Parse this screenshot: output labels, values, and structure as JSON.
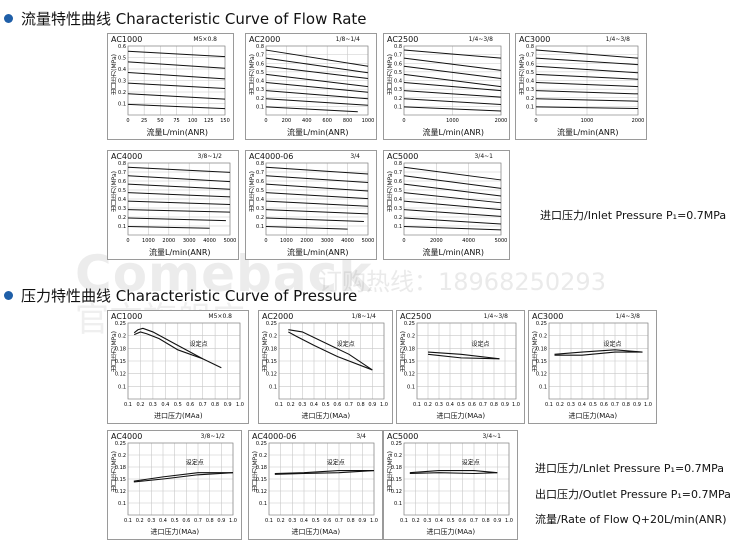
{
  "section1": {
    "title": "流量特性曲线 Characteristic Curve of Flow Rate"
  },
  "section2": {
    "title": "压力特性曲线 Characteristic Curve of Pressure"
  },
  "watermark": {
    "brand": "Comeback",
    "hotline": "订购热线：18968250293",
    "store": "官方旗舰店"
  },
  "flow_notes": {
    "inlet": "进口压力/Inlet Pressure P₁=0.7MPa"
  },
  "pressure_notes": {
    "inlet": "进口压力/Lnlet Pressure P₁=0.7MPa",
    "outlet": "出口压力/Outlet Pressure P₁=0.7MPa",
    "flow": "流量/Rate of Flow Q+20L/min(ANR)"
  },
  "labels": {
    "flow_x": "流量L/min(ANR)",
    "flow_y": "出口压力(MPa)",
    "press_x": "进口压力(MAa)",
    "press_y": "出口压力(MPa)",
    "set_point": "设定点"
  },
  "chart_data": [
    {
      "type": "line",
      "id": "f1",
      "model": "AC1000",
      "port": "M5×0.8",
      "xticks": [
        "0",
        "25",
        "50",
        "75",
        "100",
        "125",
        "150"
      ],
      "yticks": [
        "0.6",
        "0.5",
        "0.4",
        "0.3",
        "0.2",
        "0.1"
      ],
      "ylim": [
        0,
        0.65
      ],
      "xlim": [
        0,
        150
      ],
      "series": [
        {
          "x": [
            0,
            150
          ],
          "y": [
            0.6,
            0.55
          ]
        },
        {
          "x": [
            0,
            150
          ],
          "y": [
            0.5,
            0.44
          ]
        },
        {
          "x": [
            0,
            150
          ],
          "y": [
            0.4,
            0.34
          ]
        },
        {
          "x": [
            0,
            150
          ],
          "y": [
            0.3,
            0.25
          ]
        },
        {
          "x": [
            0,
            150
          ],
          "y": [
            0.2,
            0.15
          ]
        },
        {
          "x": [
            0,
            150
          ],
          "y": [
            0.1,
            0.06
          ]
        }
      ]
    },
    {
      "type": "line",
      "id": "f2",
      "model": "AC2000",
      "port": "1/8~1/4",
      "xticks": [
        "0",
        "200",
        "400",
        "600",
        "800",
        "1000"
      ],
      "yticks": [
        "0.8",
        "0.7",
        "0.6",
        "0.5",
        "0.4",
        "0.3",
        "0.2",
        "0.1"
      ],
      "ylim": [
        0,
        0.85
      ],
      "xlim": [
        0,
        1000
      ],
      "series": [
        {
          "x": [
            0,
            1000
          ],
          "y": [
            0.8,
            0.6
          ]
        },
        {
          "x": [
            0,
            1000
          ],
          "y": [
            0.7,
            0.52
          ]
        },
        {
          "x": [
            0,
            1000
          ],
          "y": [
            0.6,
            0.45
          ]
        },
        {
          "x": [
            0,
            1000
          ],
          "y": [
            0.5,
            0.35
          ]
        },
        {
          "x": [
            0,
            1000
          ],
          "y": [
            0.4,
            0.28
          ]
        },
        {
          "x": [
            0,
            1000
          ],
          "y": [
            0.3,
            0.2
          ]
        },
        {
          "x": [
            0,
            1000
          ],
          "y": [
            0.2,
            0.12
          ]
        },
        {
          "x": [
            0,
            900
          ],
          "y": [
            0.1,
            0.04
          ]
        }
      ]
    },
    {
      "type": "line",
      "id": "f3",
      "model": "AC2500",
      "port": "1/4~3/8",
      "xticks": [
        "0",
        "1000",
        "2000"
      ],
      "yticks": [
        "0.8",
        "0.7",
        "0.6",
        "0.5",
        "0.4",
        "0.3",
        "0.2",
        "0.1"
      ],
      "ylim": [
        0,
        0.85
      ],
      "xlim": [
        0,
        2000
      ],
      "series": [
        {
          "x": [
            0,
            2000
          ],
          "y": [
            0.8,
            0.7
          ]
        },
        {
          "x": [
            0,
            2000
          ],
          "y": [
            0.7,
            0.55
          ]
        },
        {
          "x": [
            0,
            2000
          ],
          "y": [
            0.6,
            0.45
          ]
        },
        {
          "x": [
            0,
            2000
          ],
          "y": [
            0.5,
            0.35
          ]
        },
        {
          "x": [
            0,
            2000
          ],
          "y": [
            0.4,
            0.3
          ]
        },
        {
          "x": [
            0,
            2000
          ],
          "y": [
            0.3,
            0.22
          ]
        },
        {
          "x": [
            0,
            2000
          ],
          "y": [
            0.2,
            0.13
          ]
        },
        {
          "x": [
            0,
            2000
          ],
          "y": [
            0.1,
            0.05
          ]
        }
      ]
    },
    {
      "type": "line",
      "id": "f4",
      "model": "AC3000",
      "port": "1/4~3/8",
      "xticks": [
        "0",
        "1000",
        "2000"
      ],
      "yticks": [
        "0.8",
        "0.7",
        "0.6",
        "0.5",
        "0.4",
        "0.3",
        "0.2",
        "0.1"
      ],
      "ylim": [
        0,
        0.85
      ],
      "xlim": [
        0,
        2000
      ],
      "series": [
        {
          "x": [
            0,
            2000
          ],
          "y": [
            0.8,
            0.7
          ]
        },
        {
          "x": [
            0,
            2000
          ],
          "y": [
            0.7,
            0.62
          ]
        },
        {
          "x": [
            0,
            2000
          ],
          "y": [
            0.6,
            0.52
          ]
        },
        {
          "x": [
            0,
            2000
          ],
          "y": [
            0.5,
            0.44
          ]
        },
        {
          "x": [
            0,
            2000
          ],
          "y": [
            0.4,
            0.35
          ]
        },
        {
          "x": [
            0,
            2000
          ],
          "y": [
            0.3,
            0.26
          ]
        },
        {
          "x": [
            0,
            2000
          ],
          "y": [
            0.2,
            0.17
          ]
        },
        {
          "x": [
            0,
            2000
          ],
          "y": [
            0.1,
            0.08
          ]
        }
      ]
    },
    {
      "type": "line",
      "id": "f5",
      "model": "AC4000",
      "port": "3/8~1/2",
      "xticks": [
        "0",
        "1000",
        "2000",
        "3000",
        "4000",
        "5000"
      ],
      "yticks": [
        "0.8",
        "0.7",
        "0.6",
        "0.5",
        "0.4",
        "0.3",
        "0.2",
        "0.1"
      ],
      "ylim": [
        0,
        0.85
      ],
      "xlim": [
        0,
        5000
      ],
      "series": [
        {
          "x": [
            0,
            5000
          ],
          "y": [
            0.8,
            0.74
          ]
        },
        {
          "x": [
            0,
            5000
          ],
          "y": [
            0.7,
            0.63
          ]
        },
        {
          "x": [
            0,
            5000
          ],
          "y": [
            0.6,
            0.54
          ]
        },
        {
          "x": [
            0,
            5000
          ],
          "y": [
            0.5,
            0.45
          ]
        },
        {
          "x": [
            0,
            5000
          ],
          "y": [
            0.4,
            0.36
          ]
        },
        {
          "x": [
            0,
            5000
          ],
          "y": [
            0.3,
            0.27
          ]
        },
        {
          "x": [
            0,
            4800
          ],
          "y": [
            0.2,
            0.17
          ]
        },
        {
          "x": [
            0,
            4000
          ],
          "y": [
            0.1,
            0.08
          ]
        }
      ]
    },
    {
      "type": "line",
      "id": "f6",
      "model": "AC4000-06",
      "port": "3/4",
      "xticks": [
        "0",
        "1000",
        "2000",
        "3000",
        "4000",
        "5000"
      ],
      "yticks": [
        "0.8",
        "0.7",
        "0.6",
        "0.5",
        "0.4",
        "0.3",
        "0.2",
        "0.1"
      ],
      "ylim": [
        0,
        0.85
      ],
      "xlim": [
        0,
        5000
      ],
      "series": [
        {
          "x": [
            0,
            5000
          ],
          "y": [
            0.8,
            0.72
          ]
        },
        {
          "x": [
            0,
            5000
          ],
          "y": [
            0.7,
            0.62
          ]
        },
        {
          "x": [
            0,
            5000
          ],
          "y": [
            0.6,
            0.52
          ]
        },
        {
          "x": [
            0,
            5000
          ],
          "y": [
            0.5,
            0.43
          ]
        },
        {
          "x": [
            0,
            5000
          ],
          "y": [
            0.4,
            0.34
          ]
        },
        {
          "x": [
            0,
            5000
          ],
          "y": [
            0.3,
            0.25
          ]
        },
        {
          "x": [
            0,
            4800
          ],
          "y": [
            0.2,
            0.16
          ]
        },
        {
          "x": [
            0,
            4000
          ],
          "y": [
            0.1,
            0.07
          ]
        }
      ]
    },
    {
      "type": "line",
      "id": "f7",
      "model": "AC5000",
      "port": "3/4~1",
      "xticks": [
        "0",
        "2000",
        "4000",
        "5000"
      ],
      "yticks": [
        "0.8",
        "0.7",
        "0.6",
        "0.5",
        "0.4",
        "0.3",
        "0.2",
        "0.1"
      ],
      "ylim": [
        0,
        0.85
      ],
      "xlim": [
        0,
        5000
      ],
      "series": [
        {
          "x": [
            0,
            5000
          ],
          "y": [
            0.8,
            0.65
          ]
        },
        {
          "x": [
            0,
            5000
          ],
          "y": [
            0.7,
            0.55
          ]
        },
        {
          "x": [
            0,
            5000
          ],
          "y": [
            0.6,
            0.46
          ]
        },
        {
          "x": [
            0,
            5000
          ],
          "y": [
            0.5,
            0.38
          ]
        },
        {
          "x": [
            0,
            5000
          ],
          "y": [
            0.4,
            0.3
          ]
        },
        {
          "x": [
            0,
            5000
          ],
          "y": [
            0.3,
            0.22
          ]
        },
        {
          "x": [
            0,
            5000
          ],
          "y": [
            0.2,
            0.13
          ]
        },
        {
          "x": [
            0,
            5000
          ],
          "y": [
            0.1,
            0.06
          ]
        }
      ]
    },
    {
      "type": "line",
      "id": "p1",
      "model": "AC1000",
      "port": "M5×0.8",
      "xticks": [
        "0.1",
        "0.2",
        "0.3",
        "0.4",
        "0.5",
        "0.6",
        "0.7",
        "0.8",
        "0.9",
        "1.0"
      ],
      "yticks": [
        "0.25",
        "0.2",
        "0.18",
        "0.15",
        "0.12",
        "0.1"
      ],
      "ylim": [
        0.1,
        0.27
      ],
      "xlim": [
        0.1,
        1.0
      ],
      "series": [
        {
          "x": [
            0.15,
            0.18,
            0.22,
            0.3,
            0.5,
            0.7,
            0.85
          ],
          "y": [
            0.248,
            0.255,
            0.258,
            0.25,
            0.22,
            0.19,
            0.17
          ]
        },
        {
          "x": [
            0.15,
            0.2,
            0.25,
            0.35,
            0.5,
            0.7
          ],
          "y": [
            0.244,
            0.25,
            0.246,
            0.235,
            0.21,
            0.19
          ]
        }
      ]
    },
    {
      "type": "line",
      "id": "p2",
      "model": "AC2000",
      "port": "1/8~1/4",
      "xticks": [
        "0.1",
        "0.2",
        "0.3",
        "0.4",
        "0.5",
        "0.6",
        "0.7",
        "0.8",
        "0.9",
        "1.0"
      ],
      "yticks": [
        "0.25",
        "0.2",
        "0.18",
        "0.15",
        "0.12",
        "0.1"
      ],
      "ylim": [
        0.1,
        0.27
      ],
      "xlim": [
        0.1,
        1.0
      ],
      "series": [
        {
          "x": [
            0.18,
            0.3,
            0.5,
            0.7,
            0.9
          ],
          "y": [
            0.255,
            0.25,
            0.225,
            0.2,
            0.165
          ]
        },
        {
          "x": [
            0.18,
            0.25,
            0.4,
            0.6,
            0.9
          ],
          "y": [
            0.25,
            0.24,
            0.22,
            0.195,
            0.165
          ]
        }
      ]
    },
    {
      "type": "line",
      "id": "p3",
      "model": "AC2500",
      "port": "1/4~3/8",
      "xticks": [
        "0.1",
        "0.2",
        "0.3",
        "0.4",
        "0.5",
        "0.6",
        "0.7",
        "0.8",
        "0.9",
        "1.0"
      ],
      "yticks": [
        "0.25",
        "0.2",
        "0.18",
        "0.15",
        "0.12",
        "0.1"
      ],
      "ylim": [
        0.1,
        0.27
      ],
      "xlim": [
        0.1,
        1.0
      ],
      "series": [
        {
          "x": [
            0.2,
            0.5,
            0.85
          ],
          "y": [
            0.205,
            0.2,
            0.19
          ]
        },
        {
          "x": [
            0.2,
            0.5,
            0.85
          ],
          "y": [
            0.2,
            0.192,
            0.19
          ]
        }
      ]
    },
    {
      "type": "line",
      "id": "p4",
      "model": "AC3000",
      "port": "1/4~3/8",
      "xticks": [
        "0.1",
        "0.2",
        "0.3",
        "0.4",
        "0.5",
        "0.6",
        "0.7",
        "0.8",
        "0.9",
        "1.0"
      ],
      "yticks": [
        "0.25",
        "0.2",
        "0.18",
        "0.15",
        "0.12",
        "0.1"
      ],
      "ylim": [
        0.1,
        0.27
      ],
      "xlim": [
        0.1,
        1.0
      ],
      "series": [
        {
          "x": [
            0.15,
            0.4,
            0.7,
            0.95
          ],
          "y": [
            0.2,
            0.205,
            0.21,
            0.205
          ]
        },
        {
          "x": [
            0.15,
            0.4,
            0.7,
            0.95
          ],
          "y": [
            0.198,
            0.198,
            0.205,
            0.205
          ]
        }
      ]
    },
    {
      "type": "line",
      "id": "p5",
      "model": "AC4000",
      "port": "3/8~1/2",
      "xticks": [
        "0.1",
        "0.2",
        "0.3",
        "0.4",
        "0.5",
        "0.6",
        "0.7",
        "0.8",
        "0.9",
        "1.0"
      ],
      "yticks": [
        "0.25",
        "0.2",
        "0.18",
        "0.15",
        "0.12",
        "0.1"
      ],
      "ylim": [
        0.1,
        0.27
      ],
      "xlim": [
        0.1,
        1.0
      ],
      "series": [
        {
          "x": [
            0.15,
            0.4,
            0.7,
            1.0
          ],
          "y": [
            0.18,
            0.19,
            0.2,
            0.2
          ]
        },
        {
          "x": [
            0.15,
            0.4,
            0.7,
            1.0
          ],
          "y": [
            0.178,
            0.185,
            0.195,
            0.2
          ]
        }
      ]
    },
    {
      "type": "line",
      "id": "p6",
      "model": "AC4000-06",
      "port": "3/4",
      "xticks": [
        "0.1",
        "0.2",
        "0.3",
        "0.4",
        "0.5",
        "0.6",
        "0.7",
        "0.8",
        "0.9",
        "1.0"
      ],
      "yticks": [
        "0.25",
        "0.2",
        "0.18",
        "0.15",
        "0.12",
        "0.1"
      ],
      "ylim": [
        0.1,
        0.27
      ],
      "xlim": [
        0.1,
        1.0
      ],
      "series": [
        {
          "x": [
            0.15,
            0.4,
            0.7,
            1.0
          ],
          "y": [
            0.198,
            0.2,
            0.205,
            0.205
          ]
        },
        {
          "x": [
            0.15,
            0.4,
            0.7,
            1.0
          ],
          "y": [
            0.196,
            0.198,
            0.2,
            0.205
          ]
        }
      ]
    },
    {
      "type": "line",
      "id": "p7",
      "model": "AC5000",
      "port": "3/4~1",
      "xticks": [
        "0.1",
        "0.2",
        "0.3",
        "0.4",
        "0.5",
        "0.6",
        "0.7",
        "0.8",
        "0.9",
        "1.0"
      ],
      "yticks": [
        "0.25",
        "0.2",
        "0.18",
        "0.15",
        "0.12",
        "0.1"
      ],
      "ylim": [
        0.1,
        0.27
      ],
      "xlim": [
        0.1,
        1.0
      ],
      "series": [
        {
          "x": [
            0.15,
            0.4,
            0.7,
            0.9
          ],
          "y": [
            0.2,
            0.205,
            0.205,
            0.2
          ]
        },
        {
          "x": [
            0.15,
            0.4,
            0.7,
            0.9
          ],
          "y": [
            0.198,
            0.2,
            0.198,
            0.2
          ]
        }
      ]
    }
  ]
}
